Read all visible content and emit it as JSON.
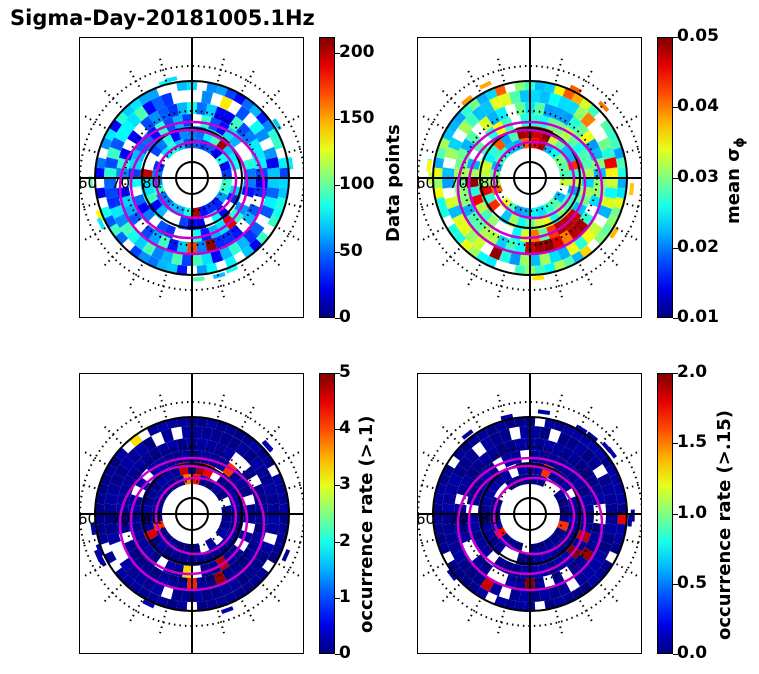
{
  "title": "Sigma-Day-20181005.1Hz",
  "chart_data": [
    {
      "type": "heatmap",
      "projection": "polar",
      "lat_labels": [
        "60",
        "70",
        "80"
      ],
      "colorbar": {
        "label": "Data points",
        "ticks": [
          "0",
          "50",
          "100",
          "150",
          "200"
        ],
        "range": [
          0,
          212
        ],
        "colormap": "jet"
      },
      "overlay": "magenta contours"
    },
    {
      "type": "heatmap",
      "projection": "polar",
      "lat_labels": [
        "60",
        "70",
        "80"
      ],
      "colorbar": {
        "label": "mean σ",
        "label_subscript": "ϕ",
        "ticks": [
          "0.01",
          "0.02",
          "0.03",
          "0.04",
          "0.05"
        ],
        "range": [
          0.01,
          0.05
        ],
        "colormap": "jet"
      },
      "overlay": "magenta contours"
    },
    {
      "type": "heatmap",
      "projection": "polar",
      "lat_labels": [
        "60",
        "70",
        "80"
      ],
      "colorbar": {
        "label": "occurrence rate (>.1)",
        "ticks": [
          "0",
          "1",
          "2",
          "3",
          "4",
          "5"
        ],
        "range": [
          0,
          5
        ],
        "colormap": "jet"
      },
      "overlay": "magenta contours"
    },
    {
      "type": "heatmap",
      "projection": "polar",
      "lat_labels": [
        "60",
        "70",
        "80"
      ],
      "colorbar": {
        "label": "occurrence rate (>.15)",
        "ticks": [
          "0.0",
          "0.5",
          "1.0",
          "1.5",
          "2.0"
        ],
        "range": [
          0,
          2
        ],
        "colormap": "jet"
      },
      "overlay": "magenta contours"
    }
  ]
}
